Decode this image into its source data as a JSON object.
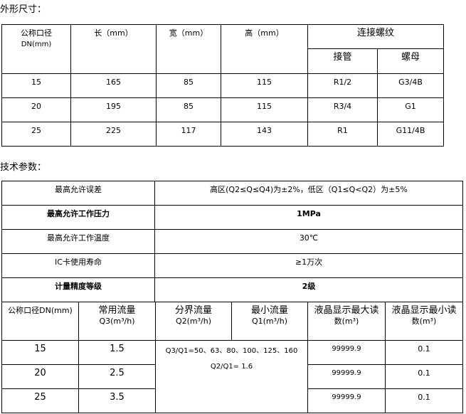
{
  "section1": {
    "title": "外形尺寸：",
    "headers": [
      "公称口径",
      "DN(mm)",
      "长（mm）",
      "宽（mm）",
      "高（mm）",
      "连接螺纹",
      "接管",
      "螺母"
    ],
    "rows": [
      [
        "15",
        "165",
        "85",
        "115",
        "R1/2",
        "G3/4B"
      ],
      [
        "20",
        "195",
        "85",
        "115",
        "R3/4",
        "G1"
      ],
      [
        "25",
        "225",
        "117",
        "143",
        "R1",
        "G11/4B"
      ]
    ]
  },
  "section2": {
    "title": "技术参数：",
    "params": [
      [
        "最高允许误差",
        "高区(Q2≤Q≤Q4)为±2%，低区（Q1≤Q<Q2）为±5%"
      ],
      [
        "最高允许工作压力",
        "1MPa"
      ],
      [
        "最高允许工作温度",
        "30℃"
      ],
      [
        "IC卡使用寿命",
        "≥1万次"
      ],
      [
        "计量精度等级",
        "2级"
      ]
    ],
    "headers": [
      [
        "公称口径DN(mm)",
        ""
      ],
      [
        "常用流量",
        "Q3(m³/h)"
      ],
      [
        "分界流量",
        "Q2(m³/h)"
      ],
      [
        "最小流量",
        "Q1(m³/h)"
      ],
      [
        "液晶显示最大读",
        "数(m³)"
      ],
      [
        "液晶显示最小读",
        "数(m³)"
      ]
    ],
    "ratio1": "Q3/Q1=50、63、80、100、125、160",
    "ratio2": "Q2/Q1= 1.6",
    "rows": [
      [
        "15",
        "1.5",
        "99999.9",
        "0.1"
      ],
      [
        "20",
        "2.5",
        "99999.9",
        "0.1"
      ],
      [
        "25",
        "3.5",
        "99999.9",
        "0.1"
      ]
    ]
  }
}
